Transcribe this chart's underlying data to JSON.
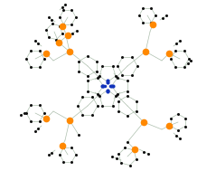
{
  "background_color": "#ffffff",
  "bond_color": "#adbfad",
  "bond_lw": 0.5,
  "carbon_color": "#111111",
  "carbon_size": 2.2,
  "silicon_color": "#ff8800",
  "silicon_size": 5.5,
  "nitrogen_color": "#1133bb",
  "nitrogen_size": 3.0,
  "figsize": [
    2.39,
    1.89
  ],
  "dpi": 100
}
